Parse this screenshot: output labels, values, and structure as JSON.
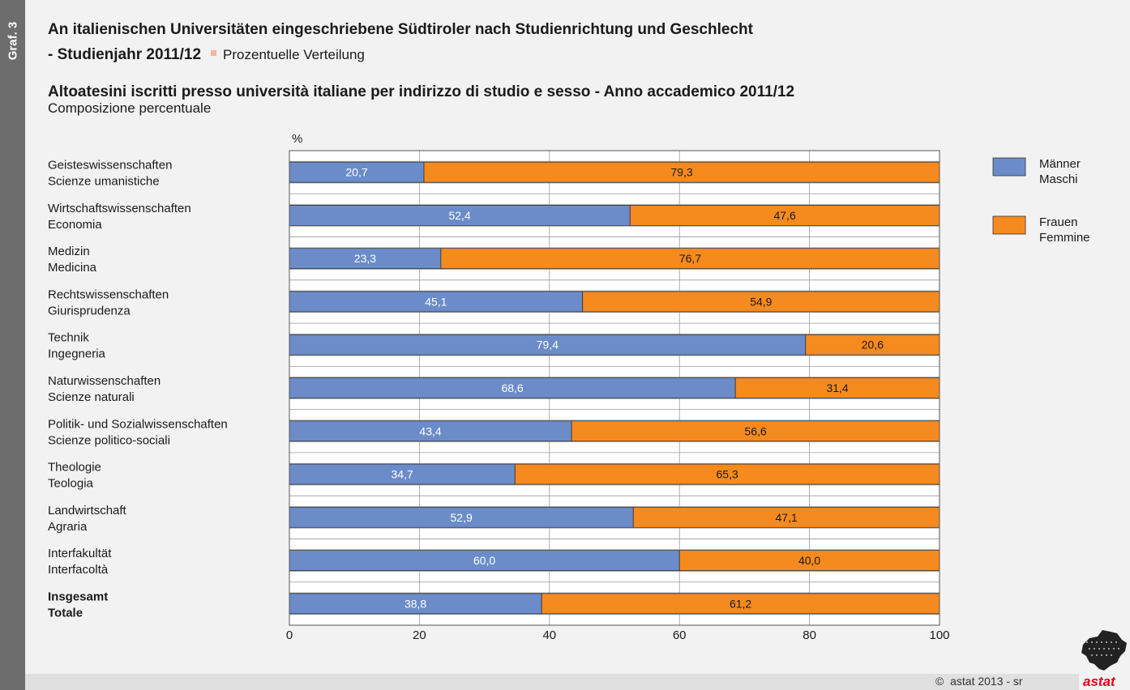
{
  "header": {
    "side_label": "Graf. 3",
    "title_de_line1": "An italienischen Universitäten eingeschriebene Südtiroler nach Studienrichtung und Geschlecht",
    "title_de_line2": "- Studienjahr 2011/12",
    "subtitle_de": "Prozentuelle Verteilung",
    "title_it": "Altoatesini iscritti presso università italiane per indirizzo di studio e sesso - Anno accademico 2011/12",
    "subtitle_it": "Composizione percentuale"
  },
  "footer": {
    "copyright_symbol": "©",
    "copyright": "astat 2013 - sr",
    "logo_text": "astat"
  },
  "colors": {
    "male": "#6b8cc9",
    "female": "#f58a1f",
    "background": "#f2f2f2",
    "side_strip": "#6d6d6d"
  },
  "chart_data": {
    "type": "bar",
    "orientation": "horizontal",
    "stacked": true,
    "unit_label": "%",
    "xlim": [
      0,
      100
    ],
    "x_ticks": [
      "0",
      "20",
      "40",
      "60",
      "80",
      "100"
    ],
    "grid": true,
    "legend_position": "right",
    "categories": [
      {
        "de": "Geisteswissenschaften",
        "it": "Scienze umanistiche",
        "bold": false
      },
      {
        "de": "Wirtschaftswissenschaften",
        "it": "Economia",
        "bold": false
      },
      {
        "de": "Medizin",
        "it": "Medicina",
        "bold": false
      },
      {
        "de": "Rechtswissenschaften",
        "it": "Giurisprudenza",
        "bold": false
      },
      {
        "de": "Technik",
        "it": "Ingegneria",
        "bold": false
      },
      {
        "de": "Naturwissenschaften",
        "it": "Scienze naturali",
        "bold": false
      },
      {
        "de": "Politik- und Sozialwissenschaften",
        "it": "Scienze politico-sociali",
        "bold": false
      },
      {
        "de": "Theologie",
        "it": "Teologia",
        "bold": false
      },
      {
        "de": "Landwirtschaft",
        "it": "Agraria",
        "bold": false
      },
      {
        "de": "Interfakultät",
        "it": "Interfacoltà",
        "bold": false
      },
      {
        "de": "Insgesamt",
        "it": "Totale",
        "bold": true
      }
    ],
    "series": [
      {
        "name_de": "Männer",
        "name_it": "Maschi",
        "color": "#6b8cc9",
        "values": [
          20.7,
          52.4,
          23.3,
          45.1,
          79.4,
          68.6,
          43.4,
          34.7,
          52.9,
          60.0,
          38.8
        ],
        "labels": [
          "20,7",
          "52,4",
          "23,3",
          "45,1",
          "79,4",
          "68,6",
          "43,4",
          "34,7",
          "52,9",
          "60,0",
          "38,8"
        ]
      },
      {
        "name_de": "Frauen",
        "name_it": "Femmine",
        "color": "#f58a1f",
        "values": [
          79.3,
          47.6,
          76.7,
          54.9,
          20.6,
          31.4,
          56.6,
          65.3,
          47.1,
          40.0,
          61.2
        ],
        "labels": [
          "79,3",
          "47,6",
          "76,7",
          "54,9",
          "20,6",
          "31,4",
          "56,6",
          "65,3",
          "47,1",
          "40,0",
          "61,2"
        ]
      }
    ]
  }
}
